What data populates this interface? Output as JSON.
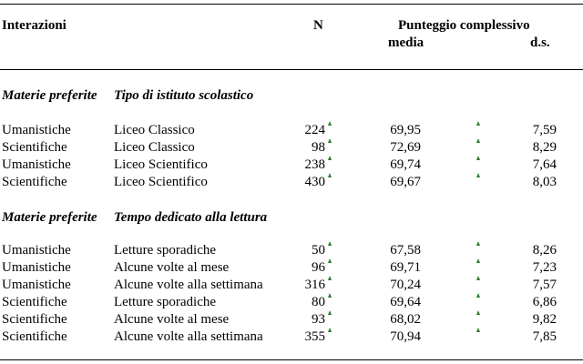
{
  "header": {
    "col_interactions": "Interazioni",
    "col_n": "N",
    "col_score": "Punteggio complessivo",
    "col_mean": "media",
    "col_sd": "d.s."
  },
  "sections": [
    {
      "label_a": "Materie preferite",
      "label_b": "Tipo di istituto scolastico",
      "rows": [
        {
          "subject": "Umanistiche",
          "category": "Liceo Classico",
          "n": "224",
          "mean": "69,95",
          "sd": "7,59"
        },
        {
          "subject": "Scientifiche",
          "category": "Liceo Classico",
          "n": "98",
          "mean": "72,69",
          "sd": "8,29"
        },
        {
          "subject": "Umanistiche",
          "category": "Liceo Scientifico",
          "n": "238",
          "mean": "69,74",
          "sd": "7,64"
        },
        {
          "subject": "Scientifiche",
          "category": "Liceo Scientifico",
          "n": "430",
          "mean": "69,67",
          "sd": "8,03"
        }
      ]
    },
    {
      "label_a": "Materie preferite",
      "label_b": "Tempo dedicato alla lettura",
      "rows": [
        {
          "subject": "Umanistiche",
          "category": "Letture sporadiche",
          "n": "50",
          "mean": "67,58",
          "sd": "8,26"
        },
        {
          "subject": "Umanistiche",
          "category": "Alcune volte al mese",
          "n": "96",
          "mean": "69,71",
          "sd": "7,23"
        },
        {
          "subject": "Umanistiche",
          "category": "Alcune volte alla settimana",
          "n": "316",
          "mean": "70,24",
          "sd": "7,57"
        },
        {
          "subject": "Scientifiche",
          "category": "Letture sporadiche",
          "n": "80",
          "mean": "69,64",
          "sd": "6,86"
        },
        {
          "subject": "Scientifiche",
          "category": "Alcune volte al mese",
          "n": "93",
          "mean": "68,02",
          "sd": "9,82"
        },
        {
          "subject": "Scientifiche",
          "category": "Alcune volte alla settimana",
          "n": "355",
          "mean": "70,94",
          "sd": "7,85"
        }
      ]
    }
  ]
}
